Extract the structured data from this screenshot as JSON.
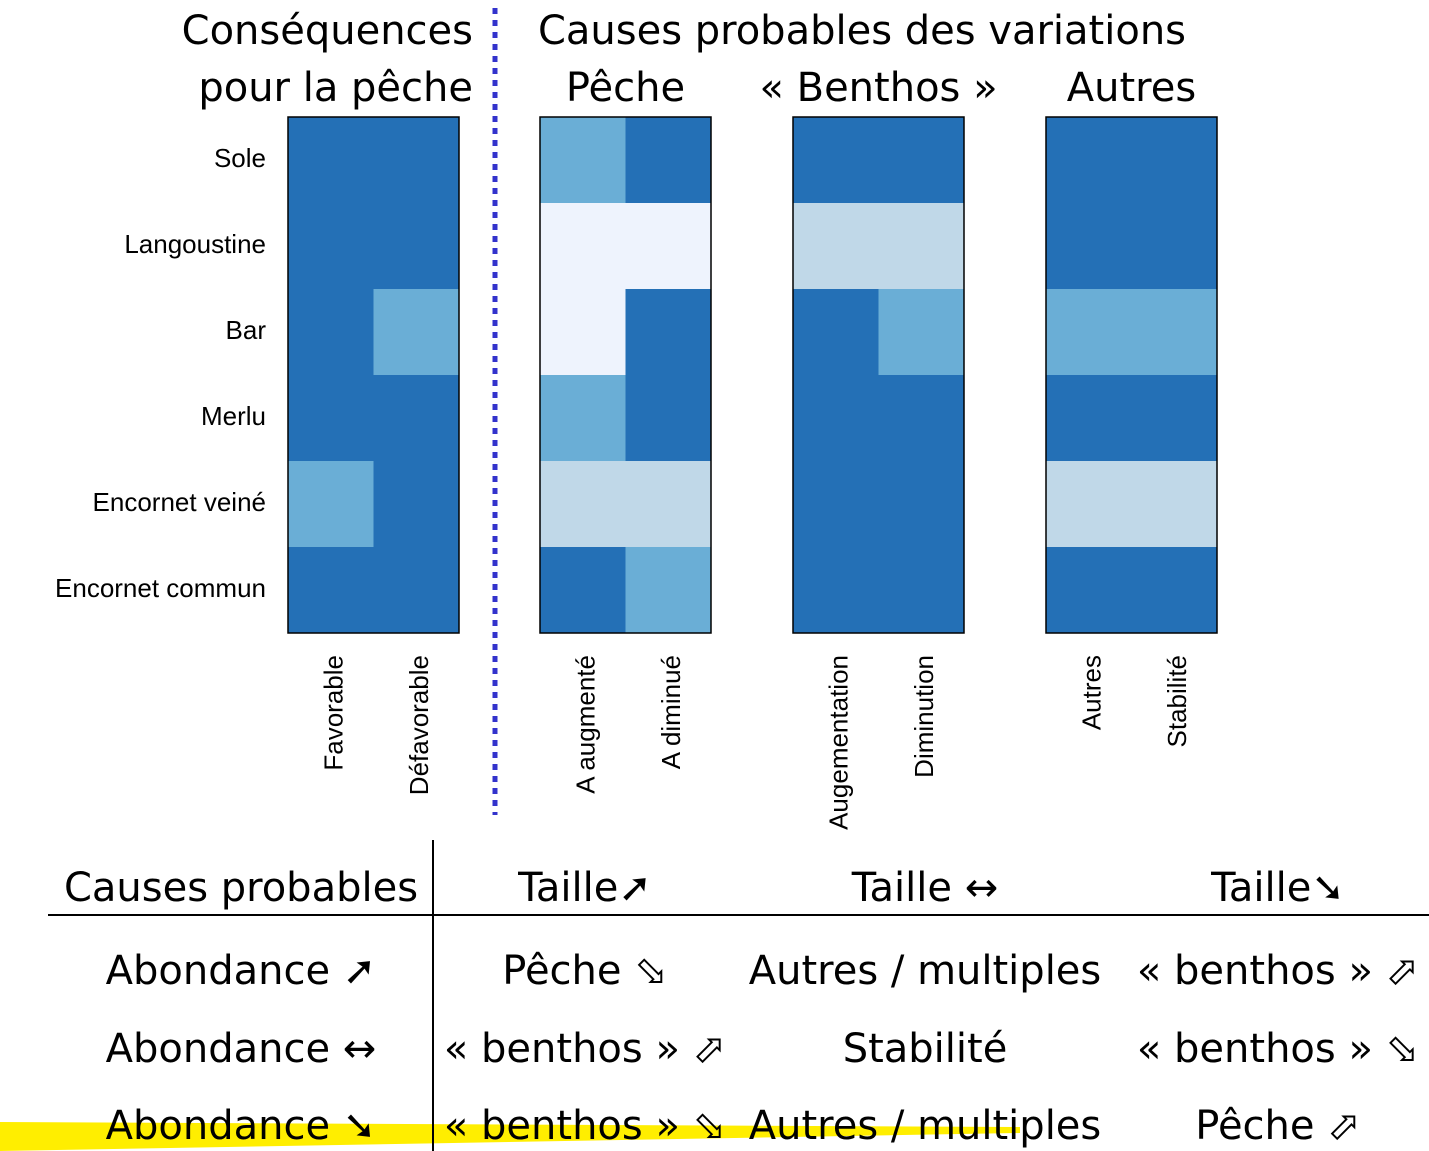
{
  "header": {
    "left": [
      "Conséquences",
      "pour la pêche"
    ],
    "right_title": "Causes probables des variations"
  },
  "heatmap": {
    "palette": {
      "d": "#2470b6",
      "m": "#6aaed6",
      "l": "#c0d8e8",
      "v": "#eef3fd"
    },
    "rows": [
      "Sole",
      "Langoustine",
      "Bar",
      "Merlu",
      "Encornet veiné",
      "Encornet commun"
    ],
    "groups": [
      {
        "columns": [
          "Favorable",
          "Défavorable"
        ],
        "cells": [
          [
            "d",
            "d"
          ],
          [
            "d",
            "d"
          ],
          [
            "d",
            "m"
          ],
          [
            "d",
            "d"
          ],
          [
            "m",
            "d"
          ],
          [
            "d",
            "d"
          ]
        ]
      },
      {
        "title": "Pêche",
        "columns": [
          "A augmenté",
          "A diminué"
        ],
        "cells": [
          [
            "m",
            "d"
          ],
          [
            "v",
            "v"
          ],
          [
            "v",
            "d"
          ],
          [
            "m",
            "d"
          ],
          [
            "l",
            "l"
          ],
          [
            "d",
            "m"
          ]
        ]
      },
      {
        "title": "« Benthos »",
        "columns": [
          "Augementation",
          "Diminution"
        ],
        "cells": [
          [
            "d",
            "d"
          ],
          [
            "l",
            "l"
          ],
          [
            "d",
            "m"
          ],
          [
            "d",
            "d"
          ],
          [
            "d",
            "d"
          ],
          [
            "d",
            "d"
          ]
        ]
      },
      {
        "title": "Autres",
        "columns": [
          "Autres",
          "Stabilité"
        ],
        "cells": [
          [
            "d",
            "d"
          ],
          [
            "d",
            "d"
          ],
          [
            "m",
            "m"
          ],
          [
            "d",
            "d"
          ],
          [
            "l",
            "l"
          ],
          [
            "d",
            "d"
          ]
        ]
      }
    ]
  },
  "table": {
    "header": [
      "Causes probables",
      "Taille➚",
      "Taille ↔",
      "Taille➘"
    ],
    "rows": [
      [
        "Abondance ➚",
        "Pêche ⬂",
        "Autres / multiples",
        "« benthos » ⬀"
      ],
      [
        "Abondance ↔",
        "« benthos » ⬀",
        "Stabilité",
        "« benthos » ⬂"
      ],
      [
        "Abondance ➘",
        "« benthos » ⬂",
        "Autres / multiples",
        "Pêche ⬀"
      ]
    ]
  }
}
